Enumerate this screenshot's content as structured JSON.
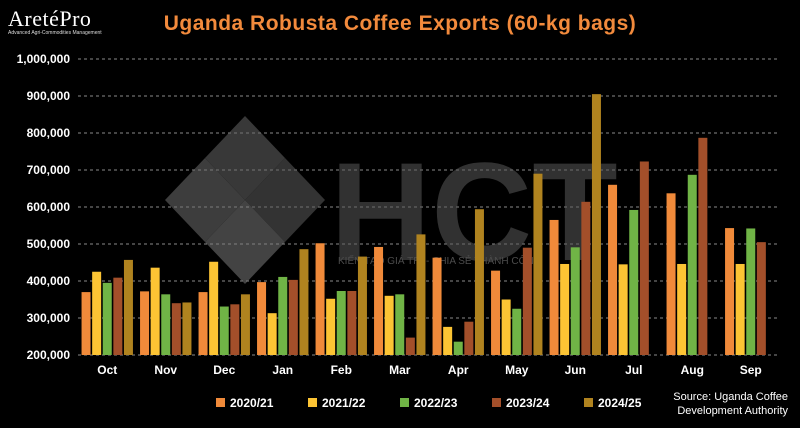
{
  "logo": {
    "name": "AretéPro",
    "tagline": "Advanced Agri-Commodities Management"
  },
  "watermark": {
    "brand": "HCT",
    "slogan": "KIẾN TẠO GIÁ TRỊ - CHIA SẺ THÀNH CÔNG"
  },
  "source": {
    "line1": "Source: Uganda Coffee",
    "line2": "Development Authority"
  },
  "colors": {
    "background": "#000000",
    "title": "#f28a3c",
    "text": "#ffffff",
    "grid": "#8a8a8a"
  },
  "chart_data": {
    "type": "bar",
    "title": "Uganda Robusta Coffee Exports (60-kg bags)",
    "categories": [
      "Oct",
      "Nov",
      "Dec",
      "Jan",
      "Feb",
      "Mar",
      "Apr",
      "May",
      "Jun",
      "Jul",
      "Aug",
      "Sep"
    ],
    "ylim": [
      200000,
      1000000
    ],
    "yticks": [
      200000,
      300000,
      400000,
      500000,
      600000,
      700000,
      800000,
      900000,
      1000000
    ],
    "ytick_labels": [
      "200,000",
      "300,000",
      "400,000",
      "500,000",
      "600,000",
      "700,000",
      "800,000",
      "900,000",
      "1,000,000"
    ],
    "grid": true,
    "legend_position": "bottom",
    "series": [
      {
        "name": "2020/21",
        "color": "#f08a3a",
        "values": [
          370000,
          372000,
          370000,
          397000,
          502000,
          492000,
          463000,
          428000,
          565000,
          660000,
          637000,
          543000
        ]
      },
      {
        "name": "2021/22",
        "color": "#fcc434",
        "values": [
          425000,
          436000,
          452000,
          313000,
          352000,
          360000,
          276000,
          350000,
          446000,
          445000,
          446000,
          446000
        ]
      },
      {
        "name": "2022/23",
        "color": "#70b446",
        "values": [
          395000,
          364000,
          331000,
          411000,
          373000,
          364000,
          236000,
          325000,
          491000,
          592000,
          687000,
          542000
        ]
      },
      {
        "name": "2023/24",
        "color": "#a34f2a",
        "values": [
          409000,
          340000,
          337000,
          403000,
          373000,
          247000,
          290000,
          490000,
          614000,
          723000,
          787000,
          505000
        ]
      },
      {
        "name": "2024/25",
        "color": "#b0831f",
        "values": [
          457000,
          342000,
          364000,
          486000,
          466000,
          526000,
          594000,
          690000,
          905000,
          null,
          null,
          null
        ]
      }
    ]
  }
}
